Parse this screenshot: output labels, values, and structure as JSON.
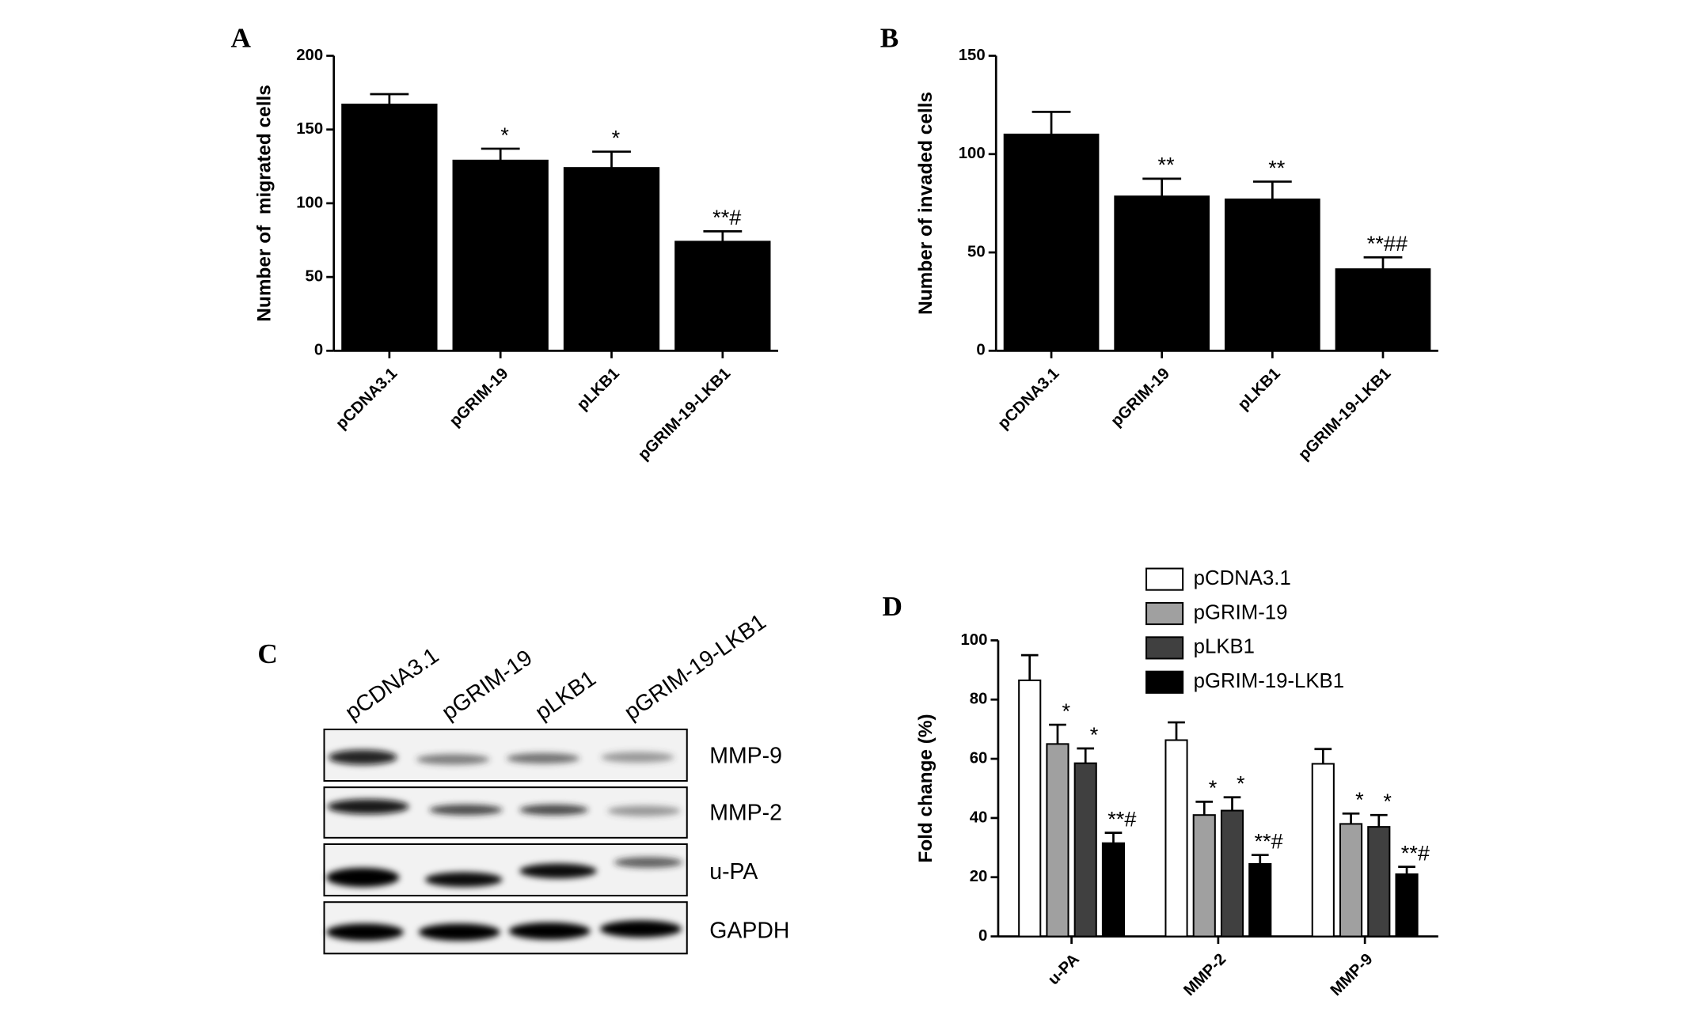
{
  "chart_data": [
    {
      "type": "bar",
      "panel_label": "A",
      "ylabel": "Number of  migrated cells",
      "categories": [
        "pCDNA3.1",
        "pGRIM-19",
        "pLKB1",
        "pGRIM-19-LKB1"
      ],
      "values": [
        167,
        129,
        124,
        74
      ],
      "errors": [
        7,
        8,
        11,
        7
      ],
      "annotations": [
        null,
        "*",
        "*",
        "**#"
      ],
      "color": "#000000",
      "ylim": [
        0,
        200
      ],
      "yticks": [
        0,
        50,
        100,
        150,
        200
      ]
    },
    {
      "type": "bar",
      "panel_label": "B",
      "ylabel": "Number of invaded cells",
      "categories": [
        "pCDNA3.1",
        "pGRIM-19",
        "pLKB1",
        "pGRIM-19-LKB1"
      ],
      "values": [
        110,
        78.5,
        77,
        41.5
      ],
      "errors": [
        11.5,
        9,
        9,
        6
      ],
      "annotations": [
        null,
        "**",
        "**",
        "**##"
      ],
      "color": "#000000",
      "ylim": [
        0,
        150
      ],
      "yticks": [
        0,
        50,
        100,
        150
      ]
    },
    {
      "type": "grouped_bar",
      "panel_label": "D",
      "ylabel": "Fold change (%)",
      "categories": [
        "u-PA",
        "MMP-2",
        "MMP-9"
      ],
      "series": [
        {
          "name": "pCDNA3.1",
          "color": "#ffffff",
          "values": [
            86.5,
            66.3,
            58.3
          ],
          "errors": [
            8.5,
            6,
            5
          ],
          "annotations": [
            null,
            null,
            null
          ]
        },
        {
          "name": "pGRIM-19",
          "color": "#a0a0a0",
          "values": [
            65,
            41,
            38
          ],
          "errors": [
            6.5,
            4.5,
            3.5
          ],
          "annotations": [
            "*",
            "*",
            "*"
          ]
        },
        {
          "name": "pLKB1",
          "color": "#404040",
          "values": [
            58.5,
            42.5,
            37
          ],
          "errors": [
            5,
            4.5,
            4
          ],
          "annotations": [
            "*",
            "*",
            "*"
          ]
        },
        {
          "name": "pGRIM-19-LKB1",
          "color": "#000000",
          "values": [
            31.5,
            24.5,
            21
          ],
          "errors": [
            3.5,
            3,
            2.5
          ],
          "annotations": [
            "**#",
            "**#",
            "**#"
          ]
        }
      ],
      "ylim": [
        0,
        100
      ],
      "yticks": [
        0,
        20,
        40,
        60,
        80,
        100
      ]
    }
  ],
  "blot": {
    "panel_label": "C",
    "lanes": [
      "pCDNA3.1",
      "pGRIM-19",
      "pLKB1",
      "pGRIM-19-LKB1"
    ],
    "rows": [
      "MMP-9",
      "MMP-2",
      "u-PA",
      "GAPDH"
    ]
  }
}
